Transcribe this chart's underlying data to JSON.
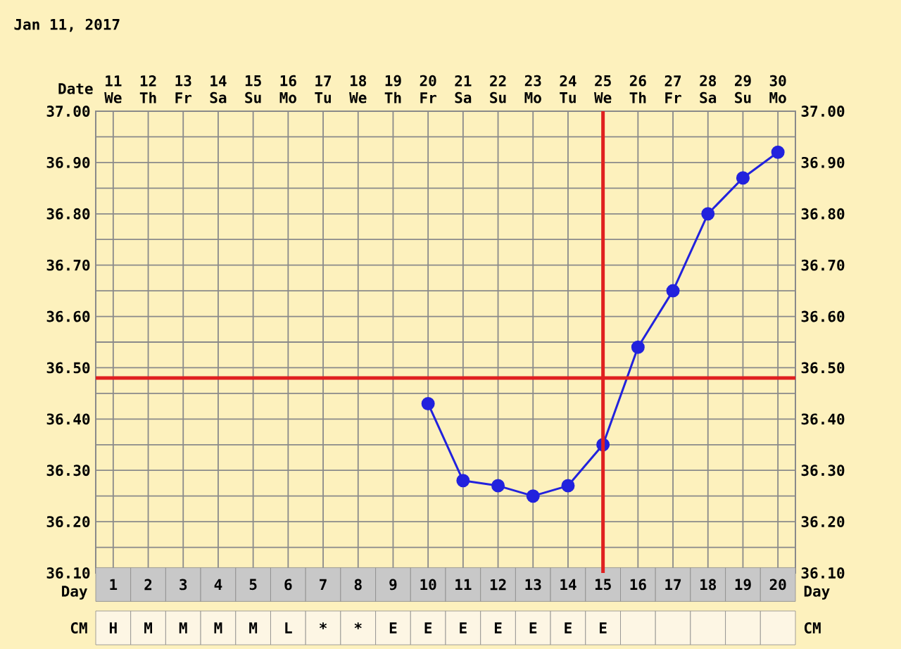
{
  "chart_data": {
    "type": "line",
    "title": "Jan 11, 2017",
    "xlabel": "Day",
    "x2label": "Date",
    "categories": [
      "1",
      "2",
      "3",
      "4",
      "5",
      "6",
      "7",
      "8",
      "9",
      "10",
      "11",
      "12",
      "13",
      "14",
      "15",
      "16",
      "17",
      "18",
      "19",
      "20"
    ],
    "series": [
      {
        "color": "#2222dd",
        "values": [
          null,
          null,
          null,
          null,
          null,
          null,
          null,
          null,
          null,
          36.43,
          36.28,
          36.27,
          36.25,
          36.27,
          36.35,
          36.54,
          36.65,
          36.8,
          36.87,
          36.92
        ]
      }
    ],
    "ylim": [
      36.1,
      37.0
    ],
    "yticks": [
      {
        "value": 36.1,
        "label": "36.10"
      },
      {
        "value": 36.15,
        "label": null
      },
      {
        "value": 36.2,
        "label": "36.20"
      },
      {
        "value": 36.25,
        "label": null
      },
      {
        "value": 36.3,
        "label": "36.30"
      },
      {
        "value": 36.35,
        "label": null
      },
      {
        "value": 36.4,
        "label": "36.40"
      },
      {
        "value": 36.45,
        "label": null
      },
      {
        "value": 36.5,
        "label": "36.50"
      },
      {
        "value": 36.55,
        "label": null
      },
      {
        "value": 36.6,
        "label": "36.60"
      },
      {
        "value": 36.65,
        "label": null
      },
      {
        "value": 36.7,
        "label": "36.70"
      },
      {
        "value": 36.75,
        "label": null
      },
      {
        "value": 36.8,
        "label": "36.80"
      },
      {
        "value": 36.85,
        "label": null
      },
      {
        "value": 36.9,
        "label": "36.90"
      },
      {
        "value": 36.95,
        "label": null
      },
      {
        "value": 37.0,
        "label": "37.00"
      }
    ],
    "y2lim": [
      36.1,
      37.0
    ],
    "y2ticks": [
      {
        "value": 36.1,
        "label": "36.10"
      },
      {
        "value": 36.2,
        "label": "36.20"
      },
      {
        "value": 36.3,
        "label": "36.30"
      },
      {
        "value": 36.4,
        "label": "36.40"
      },
      {
        "value": 36.5,
        "label": "36.50"
      },
      {
        "value": 36.6,
        "label": "36.60"
      },
      {
        "value": 36.7,
        "label": "36.70"
      },
      {
        "value": 36.8,
        "label": "36.80"
      },
      {
        "value": 36.9,
        "label": "36.90"
      },
      {
        "value": 37.0,
        "label": "37.00"
      }
    ],
    "x2lim": [
      10.5,
      30.5
    ],
    "x2ticks": [
      11,
      12,
      13,
      14,
      15,
      16,
      17,
      18,
      19,
      20,
      21,
      22,
      23,
      24,
      25,
      26,
      27,
      28,
      29,
      30
    ],
    "ref_lines": [
      {
        "axis": "y",
        "value": 36.48,
        "color": "#e02020"
      },
      {
        "axis": "x2",
        "value": 25,
        "color": "#e02020"
      }
    ],
    "grid": true,
    "marker": "circle",
    "line_style": "solid",
    "annotations": [
      "We",
      "Th",
      "Fr",
      "Sa",
      "Su",
      "Mo",
      "Tu",
      "We",
      "Th",
      "Fr",
      "Sa",
      "Su",
      "Mo",
      "Tu",
      "We",
      "Th",
      "Fr",
      "Sa",
      "Su",
      "Mo",
      "Day",
      "CM",
      "CM",
      "H",
      "M",
      "M",
      "M",
      "M",
      "L",
      "*",
      "*",
      "E",
      "E",
      "E",
      "E",
      "E",
      "E",
      "E"
    ]
  }
}
